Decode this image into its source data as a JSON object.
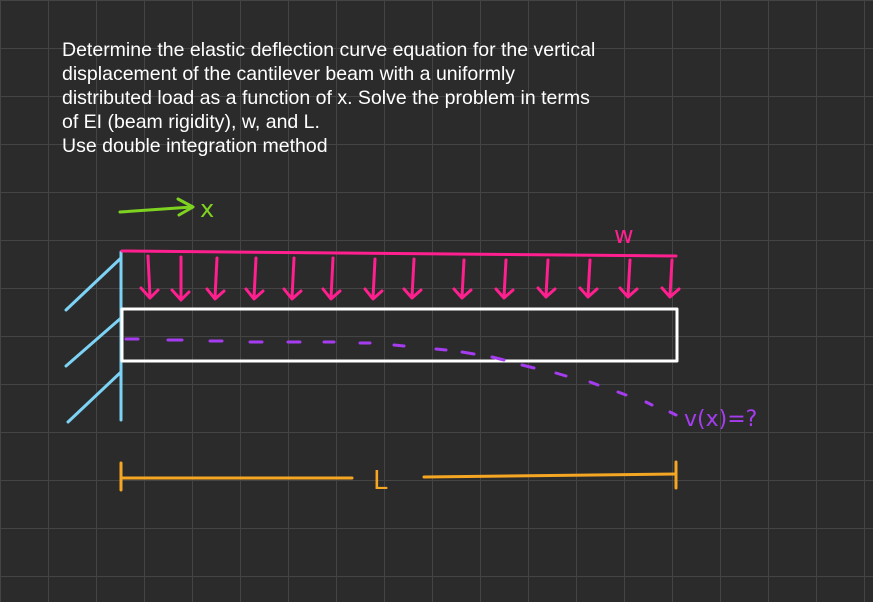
{
  "problem": {
    "lines": [
      "Determine the elastic deflection curve equation for the vertical",
      "displacement of the cantilever beam with a uniformly",
      "distributed load as a function of x. Solve the problem in terms",
      "of EI (beam rigidity), w, and L.",
      "Use double integration method"
    ]
  },
  "diagram": {
    "x_label": "x",
    "load_label": "w",
    "deflection_label": "v(x)=?",
    "length_label": "L",
    "colors": {
      "x_arrow": "#7ed321",
      "support": "#7dd3f5",
      "load": "#ff1f8f",
      "beam": "#ffffff",
      "deflection": "#a63cf0",
      "dimension": "#f5a623"
    }
  }
}
